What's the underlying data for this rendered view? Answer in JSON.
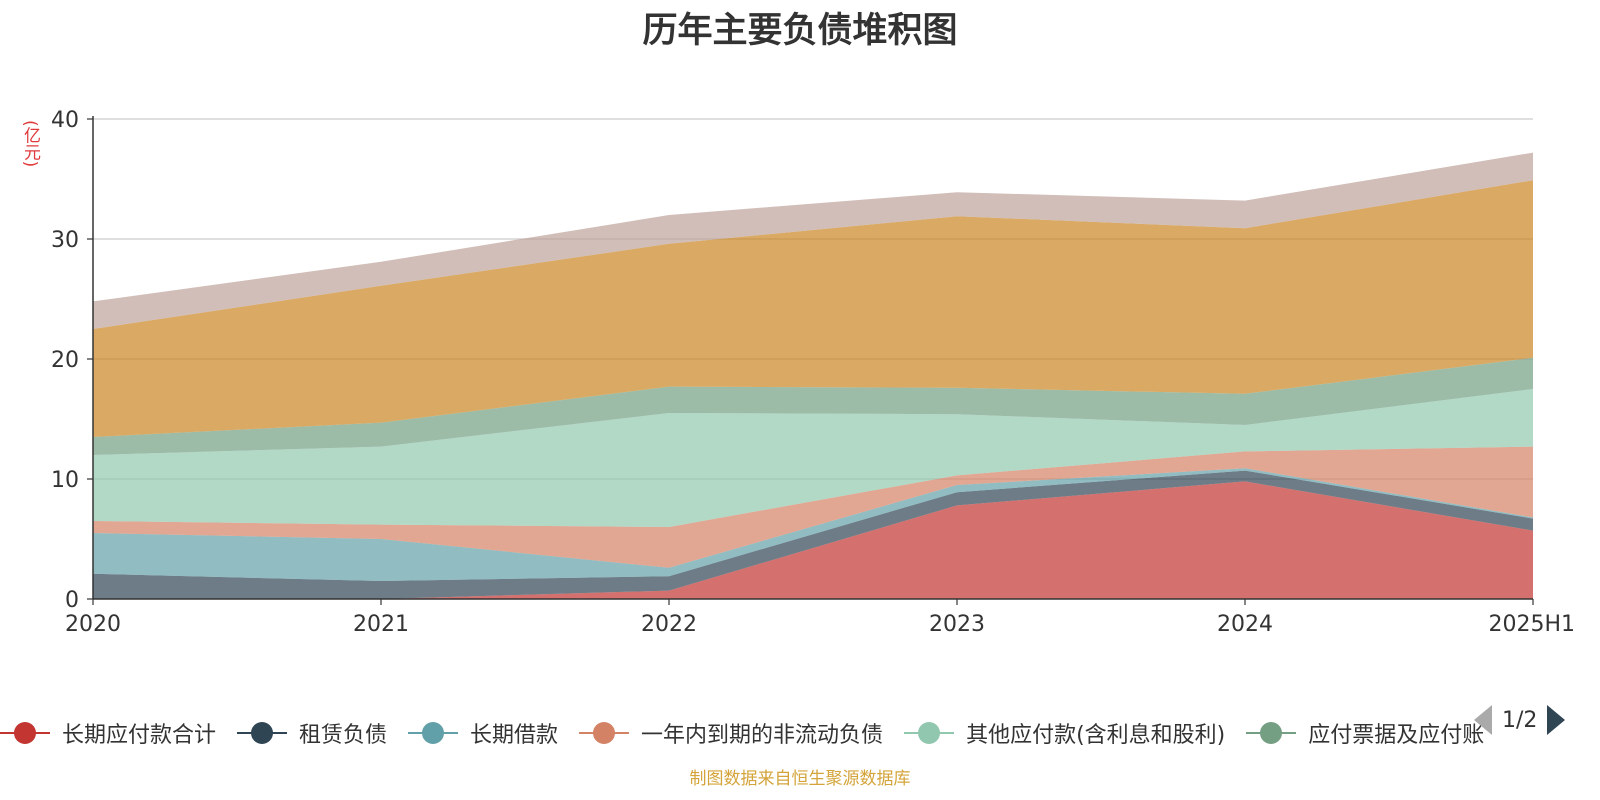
{
  "chart_data": {
    "type": "area",
    "stacked": true,
    "title": "历年主要负债堆积图",
    "ylabel": "亿元",
    "categories": [
      "2020",
      "2021",
      "2022",
      "2023",
      "2024",
      "2025H1"
    ],
    "ylim": [
      0,
      40
    ],
    "yticks": [
      0,
      10,
      20,
      30,
      40
    ],
    "grid": true,
    "series": [
      {
        "name": "长期应付款合计",
        "color": "#c23531",
        "values": [
          0,
          0,
          0.7,
          7.8,
          9.8,
          5.7
        ]
      },
      {
        "name": "租赁负债",
        "color": "#2f4554",
        "values": [
          2.1,
          1.5,
          1.2,
          1.1,
          0.9,
          1.0
        ]
      },
      {
        "name": "长期借款",
        "color": "#61a0a8",
        "values": [
          3.4,
          3.5,
          0.7,
          0.6,
          0.2,
          0.1
        ]
      },
      {
        "name": "一年内到期的非流动负债",
        "color": "#d48265",
        "values": [
          1.0,
          1.2,
          3.4,
          0.8,
          1.4,
          5.9
        ]
      },
      {
        "name": "其他应付款(含利息和股利)",
        "color": "#91c7ae",
        "values": [
          5.5,
          6.5,
          9.5,
          5.1,
          2.2,
          4.8
        ]
      },
      {
        "name": "应付票据及应付账款",
        "color": "#749f83",
        "values": [
          1.5,
          2.0,
          2.2,
          2.2,
          2.6,
          2.6
        ]
      },
      {
        "name": "",
        "color": "#ca8622",
        "values": [
          9.0,
          11.4,
          11.9,
          14.3,
          13.8,
          14.8
        ]
      },
      {
        "name": "",
        "color": "#bda29a",
        "values": [
          2.3,
          2.0,
          2.4,
          2.0,
          2.3,
          2.3
        ]
      }
    ]
  },
  "legend": {
    "page": "1/2",
    "items": [
      {
        "label": "长期应付款合计",
        "color": "#c23531"
      },
      {
        "label": "租赁负债",
        "color": "#2f4554"
      },
      {
        "label": "长期借款",
        "color": "#61a0a8"
      },
      {
        "label": "一年内到期的非流动负债",
        "color": "#d48265"
      },
      {
        "label": "其他应付款(含利息和股利)",
        "color": "#91c7ae"
      },
      {
        "label": "应付票据及应付账款",
        "color": "#749f83"
      }
    ]
  },
  "source_note": "制图数据来自恒生聚源数据库"
}
